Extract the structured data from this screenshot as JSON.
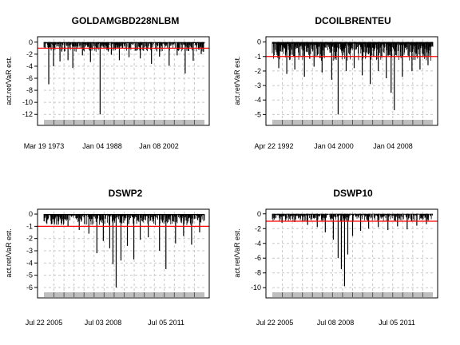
{
  "chart_data": [
    {
      "type": "bar",
      "title": "GOLDAMGBD228NLBM",
      "ylabel": "act.ret/VaR est.",
      "ylim": [
        -12.5,
        0.5
      ],
      "yticks": [
        0,
        -2,
        -4,
        -6,
        -8,
        -10,
        -12
      ],
      "ytick_labels": [
        "0",
        "-2",
        "-4",
        "-6",
        "-8",
        "-10",
        "-12"
      ],
      "xtick_labels": [
        "Mar 19 1973",
        "Jan 04 1988",
        "Jan 08 2002"
      ],
      "reference_line": -1,
      "grid": true,
      "baseline_range": [
        -1.6,
        -0.1
      ],
      "spikes": [
        {
          "x": 0.03,
          "y": -7.0
        },
        {
          "x": 0.06,
          "y": -4.0
        },
        {
          "x": 0.1,
          "y": -3.2
        },
        {
          "x": 0.15,
          "y": -3.0
        },
        {
          "x": 0.18,
          "y": -4.3
        },
        {
          "x": 0.24,
          "y": -2.2
        },
        {
          "x": 0.29,
          "y": -3.3
        },
        {
          "x": 0.35,
          "y": -12.0
        },
        {
          "x": 0.42,
          "y": -2.1
        },
        {
          "x": 0.47,
          "y": -3.0
        },
        {
          "x": 0.53,
          "y": -2.5
        },
        {
          "x": 0.6,
          "y": -2.7
        },
        {
          "x": 0.67,
          "y": -3.6
        },
        {
          "x": 0.72,
          "y": -2.4
        },
        {
          "x": 0.78,
          "y": -3.9
        },
        {
          "x": 0.83,
          "y": -2.2
        },
        {
          "x": 0.88,
          "y": -5.2
        },
        {
          "x": 0.93,
          "y": -3.1
        },
        {
          "x": 0.98,
          "y": -2.0
        }
      ]
    },
    {
      "type": "bar",
      "title": "DCOILBRENTEU",
      "ylabel": "act.ret/VaR est.",
      "ylim": [
        -5.2,
        0.2
      ],
      "yticks": [
        0,
        -1,
        -2,
        -3,
        -4,
        -5
      ],
      "ytick_labels": [
        "0",
        "-1",
        "-2",
        "-3",
        "-4",
        "-5"
      ],
      "xtick_labels": [
        "Apr 22 1992",
        "Jan 04 2000",
        "Jan 04 2008"
      ],
      "reference_line": -1,
      "grid": true,
      "baseline_range": [
        -1.3,
        -0.1
      ],
      "spikes": [
        {
          "x": 0.04,
          "y": -1.8
        },
        {
          "x": 0.09,
          "y": -2.2
        },
        {
          "x": 0.14,
          "y": -1.9
        },
        {
          "x": 0.2,
          "y": -2.4
        },
        {
          "x": 0.26,
          "y": -1.7
        },
        {
          "x": 0.31,
          "y": -2.1
        },
        {
          "x": 0.37,
          "y": -2.6
        },
        {
          "x": 0.41,
          "y": -5.0
        },
        {
          "x": 0.46,
          "y": -2.0
        },
        {
          "x": 0.51,
          "y": -1.8
        },
        {
          "x": 0.56,
          "y": -2.3
        },
        {
          "x": 0.61,
          "y": -2.9
        },
        {
          "x": 0.66,
          "y": -2.0
        },
        {
          "x": 0.71,
          "y": -2.5
        },
        {
          "x": 0.74,
          "y": -3.5
        },
        {
          "x": 0.76,
          "y": -4.7
        },
        {
          "x": 0.81,
          "y": -2.4
        },
        {
          "x": 0.87,
          "y": -2.0
        },
        {
          "x": 0.92,
          "y": -1.9
        },
        {
          "x": 0.97,
          "y": -1.6
        }
      ]
    },
    {
      "type": "bar",
      "title": "DSWP2",
      "ylabel": "act.ret/VaR est.",
      "ylim": [
        -6.2,
        0.2
      ],
      "yticks": [
        0,
        -1,
        -2,
        -3,
        -4,
        -5,
        -6
      ],
      "ytick_labels": [
        "0",
        "-1",
        "-2",
        "-3",
        "-4",
        "-5",
        "-6"
      ],
      "xtick_labels": [
        "Jul 22 2005",
        "Jul 03 2008",
        "Jul 05 2011"
      ],
      "reference_line": -1,
      "grid": true,
      "baseline_range": [
        -0.9,
        -0.05
      ],
      "spikes": [
        {
          "x": 0.05,
          "y": -0.8
        },
        {
          "x": 0.15,
          "y": -1.0
        },
        {
          "x": 0.22,
          "y": -1.3
        },
        {
          "x": 0.28,
          "y": -1.6
        },
        {
          "x": 0.33,
          "y": -3.2
        },
        {
          "x": 0.37,
          "y": -2.2
        },
        {
          "x": 0.41,
          "y": -2.8
        },
        {
          "x": 0.43,
          "y": -4.1
        },
        {
          "x": 0.45,
          "y": -6.0
        },
        {
          "x": 0.48,
          "y": -3.8
        },
        {
          "x": 0.52,
          "y": -2.6
        },
        {
          "x": 0.56,
          "y": -3.7
        },
        {
          "x": 0.6,
          "y": -2.1
        },
        {
          "x": 0.65,
          "y": -1.9
        },
        {
          "x": 0.72,
          "y": -3.0
        },
        {
          "x": 0.76,
          "y": -4.5
        },
        {
          "x": 0.82,
          "y": -2.4
        },
        {
          "x": 0.87,
          "y": -1.8
        },
        {
          "x": 0.92,
          "y": -2.5
        },
        {
          "x": 0.97,
          "y": -1.5
        }
      ]
    },
    {
      "type": "bar",
      "title": "DSWP10",
      "ylabel": "act.ret/VaR est.",
      "ylim": [
        -10.3,
        0.3
      ],
      "yticks": [
        0,
        -2,
        -4,
        -6,
        -8,
        -10
      ],
      "ytick_labels": [
        "0",
        "-2",
        "-4",
        "-6",
        "-8",
        "-10"
      ],
      "xtick_labels": [
        "Jul 22 2005",
        "Jul 08 2008",
        "Jul 05 2011"
      ],
      "reference_line": -1,
      "grid": true,
      "baseline_range": [
        -1.0,
        -0.05
      ],
      "spikes": [
        {
          "x": 0.06,
          "y": -1.2
        },
        {
          "x": 0.14,
          "y": -1.1
        },
        {
          "x": 0.22,
          "y": -1.5
        },
        {
          "x": 0.28,
          "y": -1.8
        },
        {
          "x": 0.33,
          "y": -2.5
        },
        {
          "x": 0.38,
          "y": -3.5
        },
        {
          "x": 0.41,
          "y": -6.0
        },
        {
          "x": 0.43,
          "y": -7.5
        },
        {
          "x": 0.45,
          "y": -9.8
        },
        {
          "x": 0.47,
          "y": -5.5
        },
        {
          "x": 0.5,
          "y": -3.0
        },
        {
          "x": 0.55,
          "y": -2.3
        },
        {
          "x": 0.6,
          "y": -2.0
        },
        {
          "x": 0.66,
          "y": -1.8
        },
        {
          "x": 0.72,
          "y": -2.2
        },
        {
          "x": 0.78,
          "y": -1.7
        },
        {
          "x": 0.84,
          "y": -2.1
        },
        {
          "x": 0.9,
          "y": -1.6
        },
        {
          "x": 0.96,
          "y": -1.4
        }
      ]
    }
  ],
  "colors": {
    "series": "#000000",
    "reference_line": "#ff0000",
    "grid": "#c8c8c8",
    "axis": "#000000",
    "date_strip": "#bebebe",
    "background": "#ffffff"
  }
}
